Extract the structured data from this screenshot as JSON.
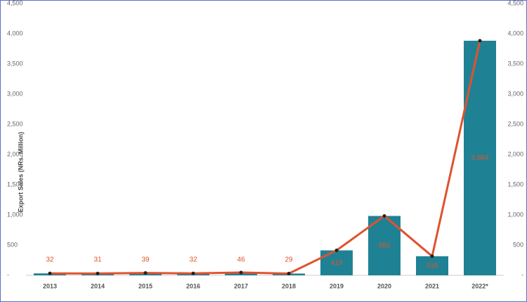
{
  "chart_data": {
    "type": "bar_line",
    "y_label": "Export Sales (NRs. Million)",
    "categories": [
      "2013",
      "2014",
      "2015",
      "2016",
      "2017",
      "2018",
      "2019",
      "2020",
      "2021",
      "2022*"
    ],
    "series": [
      {
        "type": "bar",
        "color": "#1f8294",
        "values": [
          32,
          31,
          39,
          32,
          46,
          29,
          413,
          983,
          316,
          3884
        ],
        "value_labels": [
          "32",
          "31",
          "39",
          "32",
          "46",
          "29",
          "413",
          "983",
          "316",
          "3,884"
        ]
      },
      {
        "type": "line",
        "axis": "y2",
        "color": "#e0522f",
        "values": [
          32,
          31,
          39,
          32,
          46,
          29,
          413,
          983,
          316,
          3884
        ]
      }
    ],
    "ylim": [
      0,
      4500
    ],
    "yticks": [
      {
        "value": 0,
        "label": "-"
      },
      500,
      {
        "value": 1000,
        "label": "1,000"
      },
      {
        "value": 1500,
        "label": "1,500"
      },
      {
        "value": 2000,
        "label": "2,000"
      },
      {
        "value": 2500,
        "label": "2,500"
      },
      {
        "value": 3000,
        "label": "3,000"
      },
      {
        "value": 3500,
        "label": "3,500"
      },
      {
        "value": 4000,
        "label": "4,000"
      },
      {
        "value": 4500,
        "label": "4,500"
      }
    ],
    "y2lim": [
      0,
      4500
    ],
    "y2ticks": [
      {
        "value": 0,
        "label": "-"
      },
      500,
      {
        "value": 1000,
        "label": "1,000"
      },
      {
        "value": 1500,
        "label": "1,500"
      },
      {
        "value": 2000,
        "label": "2,000"
      },
      {
        "value": 2500,
        "label": "2,500"
      },
      {
        "value": 3000,
        "label": "3,000"
      },
      {
        "value": 3500,
        "label": "3,500"
      },
      {
        "value": 4000,
        "label": "4,000"
      },
      {
        "value": 4500,
        "label": "4,500"
      }
    ]
  }
}
